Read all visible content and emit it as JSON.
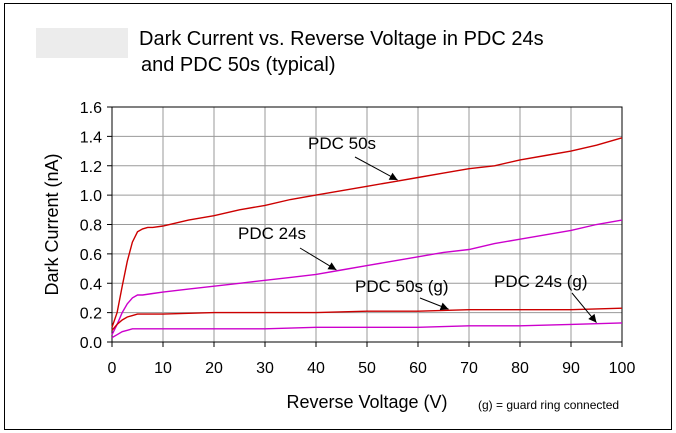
{
  "chart_data": {
    "type": "line",
    "title_line1": "Dark Current vs. Reverse Voltage in PDC 24s",
    "title_line2": "and PDC 50s (typical)",
    "xlabel": "Reverse Voltage (V)",
    "ylabel": "Dark Current (nA)",
    "xlim": [
      0,
      100
    ],
    "ylim": [
      0,
      1.6
    ],
    "xticks": [
      0,
      10,
      20,
      30,
      40,
      50,
      60,
      70,
      80,
      90,
      100
    ],
    "xtick_labels": [
      "0",
      "10",
      "20",
      "30",
      "40",
      "50",
      "60",
      "70",
      "80",
      "90",
      "100"
    ],
    "yticks": [
      0,
      0.2,
      0.4,
      0.6,
      0.8,
      1.0,
      1.2,
      1.4,
      1.6
    ],
    "ytick_labels": [
      "0.0",
      "0.2",
      "0.4",
      "0.6",
      "0.8",
      "1.0",
      "1.2",
      "1.4",
      "1.6"
    ],
    "grid": true,
    "footnote": "(g) = guard ring connected",
    "series": [
      {
        "name": "PDC 50s",
        "color": "#cc0000",
        "x": [
          0,
          1,
          2,
          3,
          4,
          5,
          6,
          7,
          8,
          10,
          15,
          20,
          25,
          30,
          35,
          40,
          45,
          50,
          55,
          60,
          65,
          70,
          75,
          80,
          85,
          90,
          95,
          100
        ],
        "y": [
          0.1,
          0.2,
          0.38,
          0.55,
          0.68,
          0.75,
          0.77,
          0.78,
          0.78,
          0.79,
          0.83,
          0.86,
          0.9,
          0.93,
          0.97,
          1.0,
          1.03,
          1.06,
          1.09,
          1.12,
          1.15,
          1.18,
          1.2,
          1.24,
          1.27,
          1.3,
          1.34,
          1.39
        ]
      },
      {
        "name": "PDC 24s",
        "color": "#cc00cc",
        "x": [
          0,
          1,
          2,
          3,
          4,
          5,
          6,
          8,
          10,
          15,
          20,
          25,
          30,
          35,
          40,
          45,
          50,
          55,
          60,
          65,
          70,
          75,
          80,
          85,
          90,
          95,
          100
        ],
        "y": [
          0.05,
          0.12,
          0.2,
          0.26,
          0.3,
          0.32,
          0.32,
          0.33,
          0.34,
          0.36,
          0.38,
          0.4,
          0.42,
          0.44,
          0.46,
          0.49,
          0.52,
          0.55,
          0.58,
          0.61,
          0.63,
          0.67,
          0.7,
          0.73,
          0.76,
          0.8,
          0.83
        ]
      },
      {
        "name": "PDC 50s (g)",
        "color": "#cc0000",
        "x": [
          0,
          1,
          2,
          3,
          4,
          5,
          6,
          8,
          10,
          20,
          30,
          40,
          50,
          60,
          70,
          80,
          90,
          100
        ],
        "y": [
          0.08,
          0.12,
          0.15,
          0.17,
          0.18,
          0.19,
          0.19,
          0.19,
          0.19,
          0.2,
          0.2,
          0.2,
          0.21,
          0.21,
          0.22,
          0.22,
          0.22,
          0.23
        ]
      },
      {
        "name": "PDC 24s (g)",
        "color": "#cc00cc",
        "x": [
          0,
          1,
          2,
          3,
          4,
          5,
          6,
          8,
          10,
          20,
          30,
          40,
          50,
          60,
          70,
          80,
          90,
          100
        ],
        "y": [
          0.03,
          0.05,
          0.07,
          0.08,
          0.09,
          0.09,
          0.09,
          0.09,
          0.09,
          0.09,
          0.09,
          0.1,
          0.1,
          0.1,
          0.11,
          0.11,
          0.12,
          0.13
        ]
      }
    ],
    "annotations": [
      {
        "text": "PDC 50s",
        "series": 0,
        "arrow_x": 56
      },
      {
        "text": "PDC 24s",
        "series": 1,
        "arrow_x": 44
      },
      {
        "text": "PDC 50s (g)",
        "series": 2,
        "arrow_x": 66
      },
      {
        "text": "PDC 24s (g)",
        "series": 3,
        "arrow_x": 95
      }
    ]
  }
}
